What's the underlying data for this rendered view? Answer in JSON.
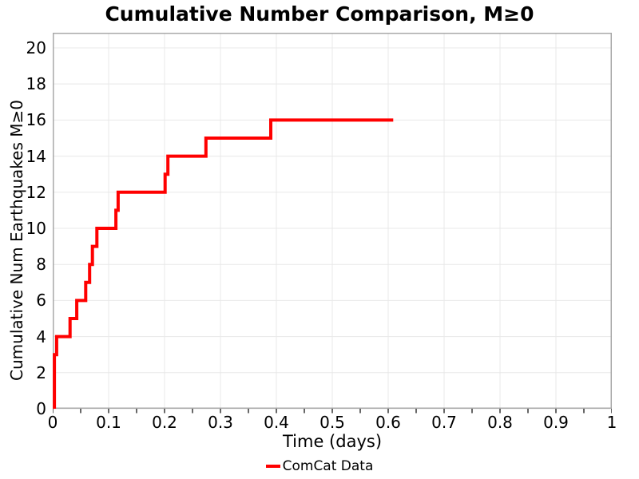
{
  "chart_data": {
    "type": "line",
    "step": true,
    "title": "Cumulative Number Comparison, M≥0",
    "xlabel": "Time (days)",
    "ylabel": "Cumulative Num Earthquakes M≥0",
    "xlim": [
      0,
      1
    ],
    "ylim": [
      0,
      20.84
    ],
    "grid": true,
    "xticks": [
      0,
      0.1,
      0.2,
      0.3,
      0.4,
      0.5,
      0.6,
      0.7,
      0.8,
      0.9,
      1
    ],
    "xtick_labels": [
      "0",
      "0.1",
      "0.2",
      "0.3",
      "0.4",
      "0.5",
      "0.6",
      "0.7",
      "0.8",
      "0.9",
      "1"
    ],
    "x_minor_tick_interval": 0.05,
    "yticks": [
      0,
      2,
      4,
      6,
      8,
      10,
      12,
      14,
      16,
      18,
      20
    ],
    "ytick_labels": [
      "0",
      "2",
      "4",
      "6",
      "8",
      "10",
      "12",
      "14",
      "16",
      "18",
      "20"
    ],
    "legend": {
      "position": "bottom-center",
      "entries": [
        {
          "label": "ComCat Data",
          "color": "#ff0000"
        }
      ]
    },
    "series": [
      {
        "name": "ComCat Data",
        "color": "#ff0000",
        "line_width": 4,
        "event_times_days": [
          0.003,
          0.003,
          0.004,
          0.007,
          0.031,
          0.043,
          0.059,
          0.066,
          0.071,
          0.079,
          0.113,
          0.117,
          0.201,
          0.206,
          0.274,
          0.39
        ],
        "end_time_days": 0.609,
        "final_count": 16,
        "points": [
          [
            0.003,
            0
          ],
          [
            0.003,
            3
          ],
          [
            0.007,
            3
          ],
          [
            0.007,
            4
          ],
          [
            0.031,
            4
          ],
          [
            0.031,
            5
          ],
          [
            0.043,
            5
          ],
          [
            0.043,
            6
          ],
          [
            0.059,
            6
          ],
          [
            0.059,
            7
          ],
          [
            0.066,
            7
          ],
          [
            0.066,
            8
          ],
          [
            0.071,
            8
          ],
          [
            0.071,
            9
          ],
          [
            0.079,
            9
          ],
          [
            0.079,
            10
          ],
          [
            0.113,
            10
          ],
          [
            0.113,
            11
          ],
          [
            0.117,
            11
          ],
          [
            0.117,
            12
          ],
          [
            0.201,
            12
          ],
          [
            0.201,
            13
          ],
          [
            0.206,
            13
          ],
          [
            0.206,
            14
          ],
          [
            0.274,
            14
          ],
          [
            0.274,
            15
          ],
          [
            0.39,
            15
          ],
          [
            0.39,
            16
          ],
          [
            0.609,
            16
          ]
        ]
      }
    ],
    "colors": {
      "line": "#ff0000",
      "frame": "#a9a9a9",
      "grid": "#e8e8e8",
      "tick": "#262626",
      "text": "#000000",
      "background": "#ffffff"
    }
  }
}
